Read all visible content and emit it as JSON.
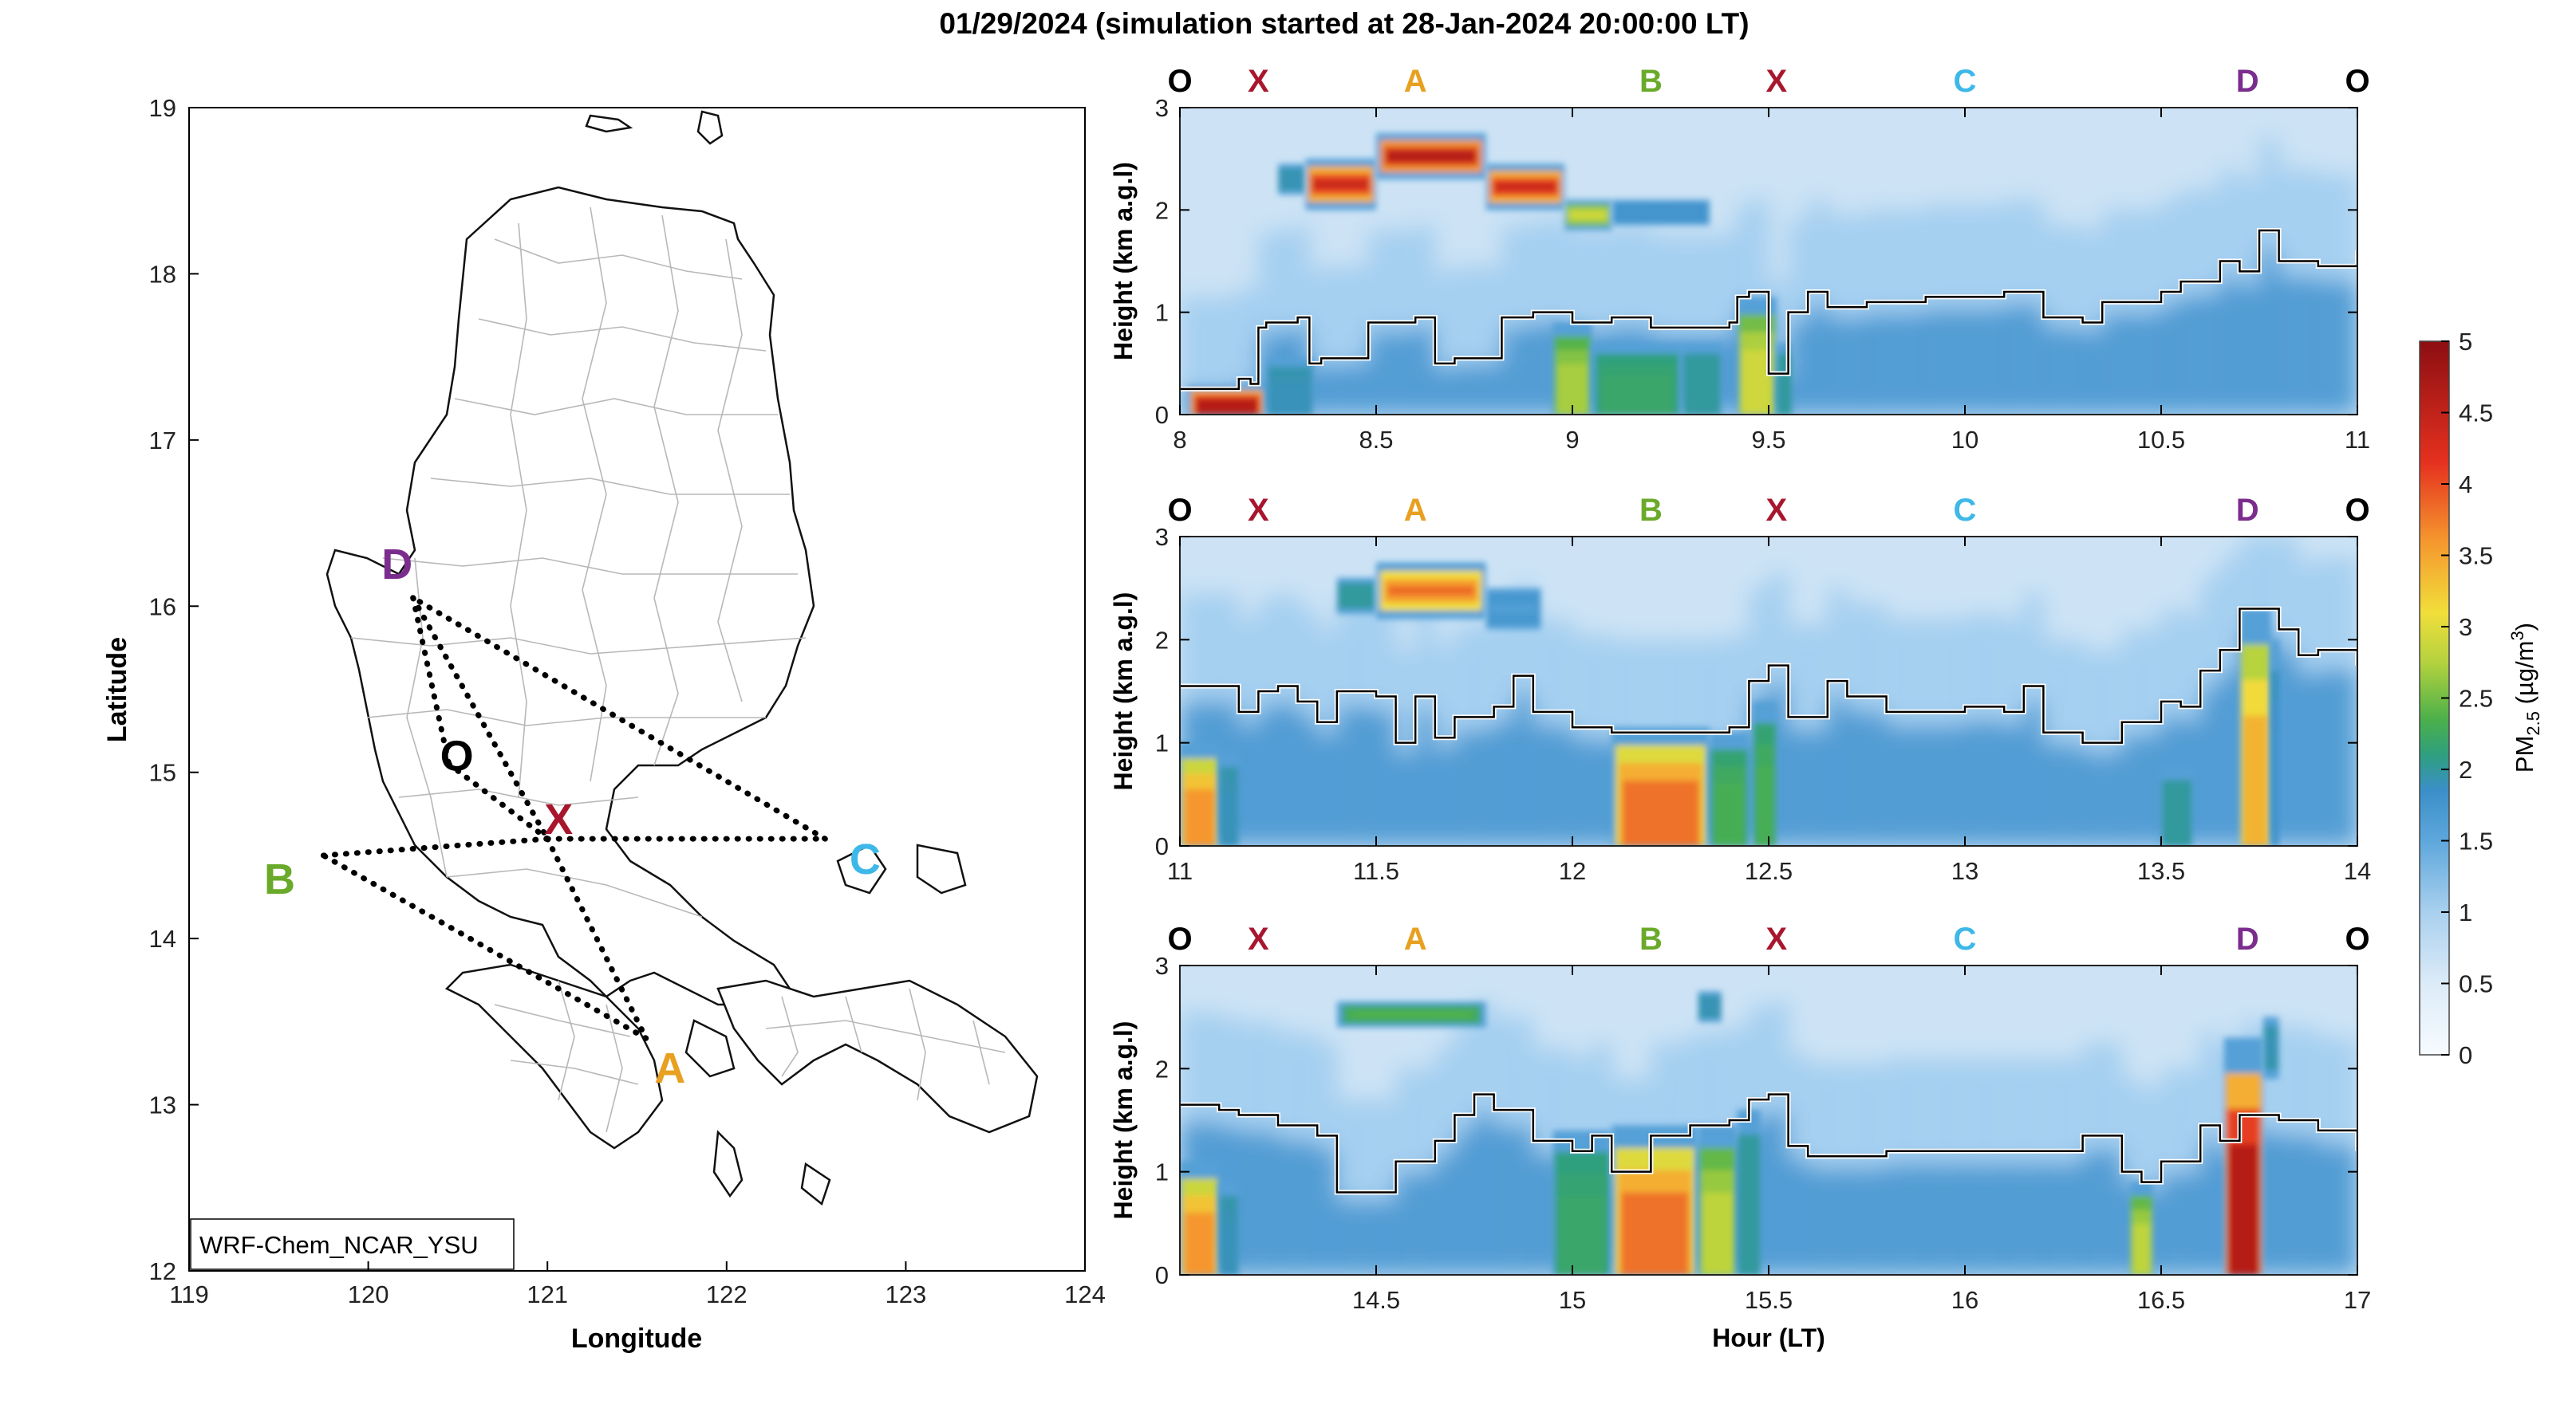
{
  "title": "01/29/2024 (simulation started at 28-Jan-2024 20:00:00 LT)",
  "map": {
    "xlabel": "Longitude",
    "ylabel": "Latitude",
    "xticks": [
      119,
      120,
      121,
      122,
      123,
      124
    ],
    "yticks": [
      12,
      13,
      14,
      15,
      16,
      17,
      18,
      19
    ],
    "model_label": "WRF-Chem_NCAR_YSU",
    "points": [
      {
        "label": "O",
        "lon": 120.45,
        "lat": 15.05,
        "color": "#000000"
      },
      {
        "label": "X",
        "lon": 121.0,
        "lat": 14.6,
        "color": "#a8162e"
      },
      {
        "label": "A",
        "lon": 121.55,
        "lat": 13.4,
        "color": "#e8a020"
      },
      {
        "label": "B",
        "lon": 119.75,
        "lat": 14.5,
        "color": "#6aaa2a"
      },
      {
        "label": "C",
        "lon": 122.55,
        "lat": 14.6,
        "color": "#3db8e8"
      },
      {
        "label": "D",
        "lon": 120.25,
        "lat": 16.05,
        "color": "#7b2d8e"
      }
    ]
  },
  "chart_data": [
    {
      "type": "heatmap",
      "panel": "top",
      "xlim": [
        8,
        11
      ],
      "ylim": [
        0,
        3
      ],
      "xticks": [
        "8",
        "8.5",
        "9",
        "9.5",
        "10",
        "10.5",
        "11"
      ],
      "yticks": [
        "0",
        "1",
        "2",
        "3"
      ],
      "ylabel": "Height (km a.g.l)",
      "xlabel": "",
      "route_labels": [
        "O",
        "X",
        "A",
        "B",
        "X",
        "C",
        "D",
        "O"
      ],
      "route_hours": [
        8.0,
        8.2,
        8.6,
        9.2,
        9.52,
        10.0,
        10.72,
        11.0
      ],
      "plumes": [
        {
          "x0": 8.02,
          "x1": 8.22,
          "y0": 0.0,
          "y1": 0.28,
          "peak": 4.6
        },
        {
          "x0": 8.25,
          "x1": 8.32,
          "y0": 2.15,
          "y1": 2.45,
          "peak": 1.9
        },
        {
          "x0": 8.32,
          "x1": 8.5,
          "y0": 2.0,
          "y1": 2.5,
          "peak": 4.6
        },
        {
          "x0": 8.5,
          "x1": 8.78,
          "y0": 2.3,
          "y1": 2.75,
          "peak": 4.9
        },
        {
          "x0": 8.78,
          "x1": 8.98,
          "y0": 2.0,
          "y1": 2.45,
          "peak": 4.6
        },
        {
          "x0": 8.98,
          "x1": 9.1,
          "y0": 1.8,
          "y1": 2.1,
          "peak": 3.0
        },
        {
          "x0": 9.1,
          "x1": 9.35,
          "y0": 1.85,
          "y1": 2.1,
          "peak": 1.7
        },
        {
          "x0": 8.22,
          "x1": 8.34,
          "y0": 0.0,
          "y1": 0.55,
          "peak": 1.9
        },
        {
          "x0": 8.95,
          "x1": 9.05,
          "y0": 0.0,
          "y1": 0.9,
          "peak": 2.7
        },
        {
          "x0": 9.05,
          "x1": 9.28,
          "y0": 0.0,
          "y1": 0.7,
          "peak": 2.2
        },
        {
          "x0": 9.28,
          "x1": 9.38,
          "y0": 0.0,
          "y1": 0.7,
          "peak": 2.0
        },
        {
          "x0": 9.42,
          "x1": 9.52,
          "y0": 0.0,
          "y1": 1.15,
          "peak": 2.9
        },
        {
          "x0": 9.52,
          "x1": 9.56,
          "y0": 0.0,
          "y1": 0.7,
          "peak": 2.0
        }
      ],
      "boundary_layer": {
        "x": [
          8.0,
          8.15,
          8.18,
          8.2,
          8.22,
          8.3,
          8.33,
          8.36,
          8.45,
          8.48,
          8.6,
          8.65,
          8.7,
          8.78,
          8.82,
          8.9,
          9.0,
          9.1,
          9.2,
          9.3,
          9.4,
          9.42,
          9.45,
          9.5,
          9.55,
          9.6,
          9.65,
          9.75,
          9.9,
          10.1,
          10.2,
          10.3,
          10.35,
          10.5,
          10.55,
          10.65,
          10.7,
          10.75,
          10.8,
          10.9,
          11.0
        ],
        "y": [
          0.25,
          0.35,
          0.3,
          0.85,
          0.9,
          0.95,
          0.5,
          0.55,
          0.55,
          0.9,
          0.95,
          0.5,
          0.55,
          0.55,
          0.95,
          1.0,
          0.9,
          0.95,
          0.85,
          0.85,
          0.9,
          1.15,
          1.2,
          0.4,
          1.0,
          1.2,
          1.05,
          1.1,
          1.15,
          1.2,
          0.95,
          0.9,
          1.1,
          1.2,
          1.3,
          1.5,
          1.4,
          1.8,
          1.5,
          1.45,
          1.6
        ]
      }
    },
    {
      "type": "heatmap",
      "panel": "middle",
      "xlim": [
        11,
        14
      ],
      "ylim": [
        0,
        3
      ],
      "xticks": [
        "11",
        "11.5",
        "12",
        "12.5",
        "13",
        "13.5",
        "14"
      ],
      "yticks": [
        "0",
        "1",
        "2",
        "3"
      ],
      "ylabel": "Height (km a.g.l)",
      "xlabel": "",
      "route_labels": [
        "O",
        "X",
        "A",
        "B",
        "X",
        "C",
        "D",
        "O"
      ],
      "route_hours": [
        11.0,
        11.2,
        11.6,
        12.2,
        12.52,
        13.0,
        13.72,
        14.0
      ],
      "plumes": [
        {
          "x0": 11.4,
          "x1": 11.5,
          "y0": 2.25,
          "y1": 2.6,
          "peak": 2.0
        },
        {
          "x0": 11.5,
          "x1": 11.78,
          "y0": 2.2,
          "y1": 2.75,
          "peak": 4.0
        },
        {
          "x0": 11.78,
          "x1": 11.92,
          "y0": 2.1,
          "y1": 2.5,
          "peak": 1.6
        },
        {
          "x0": 11.0,
          "x1": 11.1,
          "y0": 0.0,
          "y1": 1.0,
          "peak": 3.6
        },
        {
          "x0": 11.1,
          "x1": 11.15,
          "y0": 0.0,
          "y1": 0.9,
          "peak": 1.9
        },
        {
          "x0": 12.1,
          "x1": 12.35,
          "y0": 0.0,
          "y1": 1.15,
          "peak": 3.8
        },
        {
          "x0": 12.35,
          "x1": 12.45,
          "y0": 0.0,
          "y1": 1.1,
          "peak": 2.3
        },
        {
          "x0": 12.46,
          "x1": 12.52,
          "y0": 0.0,
          "y1": 1.4,
          "peak": 2.3
        },
        {
          "x0": 13.5,
          "x1": 13.58,
          "y0": 0.0,
          "y1": 0.75,
          "peak": 2.0
        },
        {
          "x0": 13.7,
          "x1": 13.78,
          "y0": 0.0,
          "y1": 2.3,
          "peak": 3.4
        },
        {
          "x0": 13.78,
          "x1": 13.8,
          "y0": 0.0,
          "y1": 2.0,
          "peak": 1.8
        }
      ],
      "boundary_layer": {
        "x": [
          11.0,
          11.1,
          11.15,
          11.2,
          11.25,
          11.3,
          11.35,
          11.4,
          11.5,
          11.55,
          11.6,
          11.65,
          11.7,
          11.8,
          11.85,
          11.9,
          12.0,
          12.1,
          12.3,
          12.4,
          12.45,
          12.5,
          12.55,
          12.65,
          12.7,
          12.8,
          13.0,
          13.1,
          13.15,
          13.2,
          13.3,
          13.4,
          13.5,
          13.55,
          13.6,
          13.65,
          13.7,
          13.8,
          13.85,
          13.9,
          14.0
        ],
        "y": [
          1.55,
          1.55,
          1.3,
          1.5,
          1.55,
          1.4,
          1.2,
          1.5,
          1.45,
          1.0,
          1.45,
          1.05,
          1.25,
          1.35,
          1.65,
          1.3,
          1.15,
          1.1,
          1.1,
          1.15,
          1.6,
          1.75,
          1.25,
          1.6,
          1.45,
          1.3,
          1.35,
          1.3,
          1.55,
          1.1,
          1.0,
          1.2,
          1.4,
          1.35,
          1.7,
          1.9,
          2.3,
          2.1,
          1.85,
          1.9,
          1.75
        ]
      }
    },
    {
      "type": "heatmap",
      "panel": "bottom",
      "xlim": [
        14,
        17
      ],
      "ylim": [
        0,
        3
      ],
      "xticks": [
        "14.5",
        "15",
        "15.5",
        "16",
        "16.5",
        "17"
      ],
      "yticks": [
        "0",
        "1",
        "2",
        "3"
      ],
      "ylabel": "Height (km a.g.l)",
      "xlabel": "Hour (LT)",
      "route_labels": [
        "O",
        "X",
        "A",
        "B",
        "X",
        "C",
        "D",
        "O"
      ],
      "route_hours": [
        14.0,
        14.2,
        14.6,
        15.2,
        15.52,
        16.0,
        16.72,
        17.0
      ],
      "plumes": [
        {
          "x0": 14.4,
          "x1": 14.78,
          "y0": 2.4,
          "y1": 2.65,
          "peak": 2.4
        },
        {
          "x0": 15.32,
          "x1": 15.38,
          "y0": 2.45,
          "y1": 2.75,
          "peak": 1.9
        },
        {
          "x0": 14.0,
          "x1": 14.1,
          "y0": 0.0,
          "y1": 1.1,
          "peak": 3.6
        },
        {
          "x0": 14.1,
          "x1": 14.15,
          "y0": 0.0,
          "y1": 0.9,
          "peak": 1.9
        },
        {
          "x0": 14.95,
          "x1": 15.1,
          "y0": 0.0,
          "y1": 1.4,
          "peak": 2.2
        },
        {
          "x0": 15.1,
          "x1": 15.32,
          "y0": 0.0,
          "y1": 1.45,
          "peak": 3.8
        },
        {
          "x0": 15.32,
          "x1": 15.42,
          "y0": 0.0,
          "y1": 1.45,
          "peak": 2.8
        },
        {
          "x0": 15.42,
          "x1": 15.48,
          "y0": 0.0,
          "y1": 1.6,
          "peak": 2.0
        },
        {
          "x0": 16.42,
          "x1": 16.48,
          "y0": 0.0,
          "y1": 0.9,
          "peak": 2.8
        },
        {
          "x0": 16.66,
          "x1": 16.76,
          "y0": 0.0,
          "y1": 2.3,
          "peak": 4.6
        },
        {
          "x0": 16.76,
          "x1": 16.8,
          "y0": 1.9,
          "y1": 2.5,
          "peak": 1.9
        }
      ],
      "boundary_layer": {
        "x": [
          14.0,
          14.1,
          14.15,
          14.25,
          14.35,
          14.4,
          14.5,
          14.55,
          14.65,
          14.7,
          14.75,
          14.8,
          14.9,
          15.0,
          15.05,
          15.1,
          15.2,
          15.3,
          15.4,
          15.45,
          15.5,
          15.55,
          15.6,
          15.7,
          15.8,
          15.9,
          16.0,
          16.1,
          16.2,
          16.3,
          16.4,
          16.45,
          16.5,
          16.6,
          16.65,
          16.7,
          16.8,
          16.9,
          17.0
        ],
        "y": [
          1.65,
          1.6,
          1.55,
          1.45,
          1.35,
          0.8,
          0.8,
          1.1,
          1.3,
          1.55,
          1.75,
          1.6,
          1.3,
          1.2,
          1.35,
          1.0,
          1.35,
          1.45,
          1.5,
          1.7,
          1.75,
          1.25,
          1.15,
          1.15,
          1.2,
          1.2,
          1.2,
          1.2,
          1.2,
          1.35,
          1.0,
          0.9,
          1.1,
          1.45,
          1.3,
          1.55,
          1.5,
          1.4,
          1.2
        ]
      }
    }
  ],
  "colorbar": {
    "label_main": "PM",
    "label_sub": "2.5",
    "label_unit": " (µg/m",
    "label_sup": "3",
    "label_close": ")",
    "ticks": [
      "0",
      "0.5",
      "1",
      "1.5",
      "2",
      "2.5",
      "3",
      "3.5",
      "4",
      "4.5",
      "5"
    ],
    "range": [
      0,
      5
    ]
  }
}
